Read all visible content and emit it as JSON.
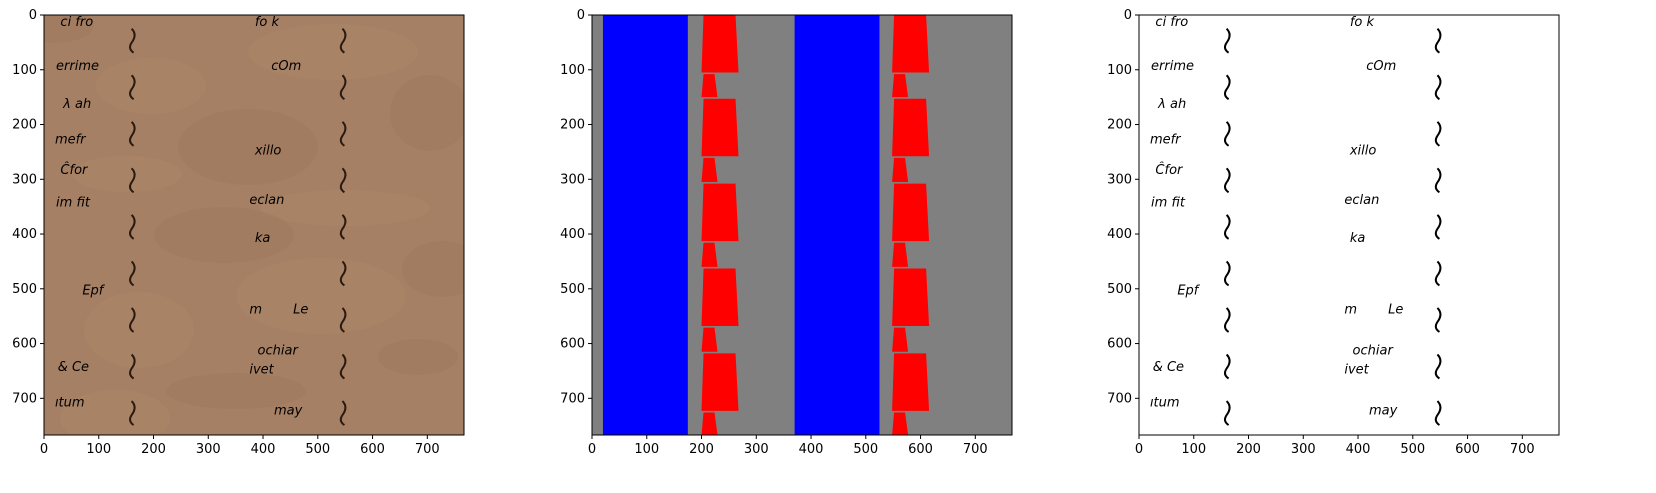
{
  "chart_data": [
    {
      "type": "image",
      "panel": "photo",
      "xlim": [
        0,
        767
      ],
      "ylim": [
        767,
        0
      ],
      "xticks": [
        0,
        100,
        200,
        300,
        400,
        500,
        600,
        700
      ],
      "yticks": [
        0,
        100,
        200,
        300,
        400,
        500,
        600,
        700
      ],
      "content": "handwritten manuscript scan on brown paper",
      "background_color": "#a68064",
      "strokes": [
        {
          "text": "ci fro",
          "x": 30,
          "y": 20
        },
        {
          "text": "fo k",
          "x": 385,
          "y": 20
        },
        {
          "text": "errime",
          "x": 22,
          "y": 100
        },
        {
          "text": "cOm",
          "x": 415,
          "y": 100
        },
        {
          "text": "λ ah",
          "x": 35,
          "y": 170
        },
        {
          "text": "mefr",
          "x": 20,
          "y": 235
        },
        {
          "text": "xillo",
          "x": 385,
          "y": 255
        },
        {
          "text": "Ĉfor",
          "x": 30,
          "y": 290
        },
        {
          "text": "im fit",
          "x": 22,
          "y": 350
        },
        {
          "text": "eclan",
          "x": 375,
          "y": 345
        },
        {
          "text": "ka",
          "x": 385,
          "y": 415
        },
        {
          "text": "Epf",
          "x": 70,
          "y": 510
        },
        {
          "text": "m",
          "x": 375,
          "y": 545
        },
        {
          "text": "Le",
          "x": 455,
          "y": 545
        },
        {
          "text": "ochiar",
          "x": 390,
          "y": 620
        },
        {
          "text": "& Ce",
          "x": 25,
          "y": 650
        },
        {
          "text": "ivet",
          "x": 375,
          "y": 655
        },
        {
          "text": "ıtum",
          "x": 20,
          "y": 715
        },
        {
          "text": "may",
          "x": 420,
          "y": 730
        }
      ]
    },
    {
      "type": "image",
      "panel": "segmentation-mask",
      "xlim": [
        0,
        767
      ],
      "ylim": [
        767,
        0
      ],
      "xticks": [
        0,
        100,
        200,
        300,
        400,
        500,
        600,
        700
      ],
      "yticks": [
        0,
        100,
        200,
        300,
        400,
        500,
        600,
        700
      ],
      "background_color": "#808080",
      "columns": [
        {
          "color": "#0000ff",
          "x_start": 20,
          "x_end": 175
        },
        {
          "color": "#0000ff",
          "x_start": 370,
          "x_end": 525
        }
      ],
      "red_segments": [
        {
          "group": 1,
          "x_left": 200,
          "y_start": 0,
          "y_end": 105
        },
        {
          "group": 1,
          "x_left": 200,
          "y_start": 108,
          "y_end": 150
        },
        {
          "group": 1,
          "x_left": 200,
          "y_start": 153,
          "y_end": 258
        },
        {
          "group": 1,
          "x_left": 200,
          "y_start": 261,
          "y_end": 305
        },
        {
          "group": 1,
          "x_left": 200,
          "y_start": 308,
          "y_end": 413
        },
        {
          "group": 1,
          "x_left": 200,
          "y_start": 416,
          "y_end": 460
        },
        {
          "group": 1,
          "x_left": 200,
          "y_start": 463,
          "y_end": 568
        },
        {
          "group": 1,
          "x_left": 200,
          "y_start": 571,
          "y_end": 615
        },
        {
          "group": 1,
          "x_left": 200,
          "y_start": 618,
          "y_end": 723
        },
        {
          "group": 1,
          "x_left": 200,
          "y_start": 726,
          "y_end": 767
        },
        {
          "group": 2,
          "x_left": 548,
          "y_start": 0,
          "y_end": 105
        },
        {
          "group": 2,
          "x_left": 548,
          "y_start": 108,
          "y_end": 150
        },
        {
          "group": 2,
          "x_left": 548,
          "y_start": 153,
          "y_end": 258
        },
        {
          "group": 2,
          "x_left": 548,
          "y_start": 261,
          "y_end": 305
        },
        {
          "group": 2,
          "x_left": 548,
          "y_start": 308,
          "y_end": 413
        },
        {
          "group": 2,
          "x_left": 548,
          "y_start": 416,
          "y_end": 460
        },
        {
          "group": 2,
          "x_left": 548,
          "y_start": 463,
          "y_end": 568
        },
        {
          "group": 2,
          "x_left": 548,
          "y_start": 571,
          "y_end": 615
        },
        {
          "group": 2,
          "x_left": 548,
          "y_start": 618,
          "y_end": 723
        },
        {
          "group": 2,
          "x_left": 548,
          "y_start": 726,
          "y_end": 767
        }
      ]
    },
    {
      "type": "image",
      "panel": "binarized",
      "xlim": [
        0,
        767
      ],
      "ylim": [
        767,
        0
      ],
      "xticks": [
        0,
        100,
        200,
        300,
        400,
        500,
        600,
        700
      ],
      "yticks": [
        0,
        100,
        200,
        300,
        400,
        500,
        600,
        700
      ],
      "content": "black-and-white binarization of the handwriting",
      "background_color": "#ffffff",
      "ink_color": "#000000",
      "strokes": [
        {
          "text": "ci fro",
          "x": 30,
          "y": 20
        },
        {
          "text": "fo k",
          "x": 385,
          "y": 20
        },
        {
          "text": "errime",
          "x": 22,
          "y": 100
        },
        {
          "text": "cOm",
          "x": 415,
          "y": 100
        },
        {
          "text": "λ ah",
          "x": 35,
          "y": 170
        },
        {
          "text": "mefr",
          "x": 20,
          "y": 235
        },
        {
          "text": "xillo",
          "x": 385,
          "y": 255
        },
        {
          "text": "Ĉfor",
          "x": 30,
          "y": 290
        },
        {
          "text": "im fit",
          "x": 22,
          "y": 350
        },
        {
          "text": "eclan",
          "x": 375,
          "y": 345
        },
        {
          "text": "ka",
          "x": 385,
          "y": 415
        },
        {
          "text": "Epf",
          "x": 70,
          "y": 510
        },
        {
          "text": "m",
          "x": 375,
          "y": 545
        },
        {
          "text": "Le",
          "x": 455,
          "y": 545
        },
        {
          "text": "ochiar",
          "x": 390,
          "y": 620
        },
        {
          "text": "& Ce",
          "x": 25,
          "y": 650
        },
        {
          "text": "ivet",
          "x": 375,
          "y": 655
        },
        {
          "text": "ıtum",
          "x": 20,
          "y": 715
        },
        {
          "text": "may",
          "x": 420,
          "y": 730
        }
      ]
    }
  ]
}
